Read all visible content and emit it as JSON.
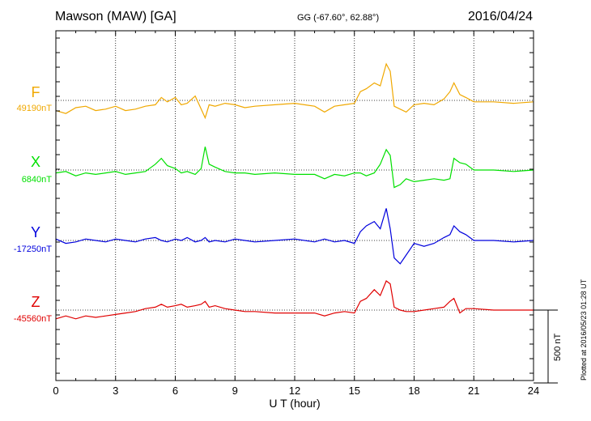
{
  "header": {
    "station": "Mawson (MAW)  [GA]",
    "coords": "GG (-67.60°,  62.88°)",
    "date": "2016/04/24"
  },
  "plotted_note": "Plotted at 2016/05/23 01:28 UT",
  "colors": {
    "F": "#f0a800",
    "X": "#00e000",
    "Y": "#0000dd",
    "Z": "#e00000"
  },
  "chart_data": {
    "type": "line",
    "title": "Mawson (MAW)  [GA]",
    "xlabel": "U T (hour)",
    "x_ticks": [
      "0",
      "3",
      "6",
      "9",
      "12",
      "15",
      "18",
      "21",
      "24"
    ],
    "xlim": [
      0,
      24
    ],
    "grid": true,
    "scale_bar": {
      "label": "500 nT",
      "value_nT": 500
    },
    "series": [
      {
        "name": "F",
        "baseline_label": "49190nT",
        "baseline_nT": 49190,
        "x": [
          0,
          0.5,
          1,
          1.5,
          2,
          2.5,
          3,
          3.5,
          4,
          4.5,
          5,
          5.3,
          5.6,
          6,
          6.3,
          6.6,
          7,
          7.3,
          7.5,
          7.7,
          8,
          8.5,
          9,
          9.5,
          10,
          11,
          12,
          13,
          13.5,
          14,
          14.5,
          15,
          15.3,
          15.6,
          16,
          16.3,
          16.6,
          16.8,
          17,
          17.3,
          17.6,
          18,
          18.5,
          19,
          19.5,
          19.8,
          20,
          20.3,
          20.6,
          21,
          22,
          23,
          24
        ],
        "values": [
          -70,
          -90,
          -50,
          -40,
          -70,
          -60,
          -40,
          -70,
          -60,
          -40,
          -30,
          20,
          -10,
          20,
          -30,
          -20,
          30,
          -60,
          -120,
          -30,
          -40,
          -20,
          -30,
          -50,
          -40,
          -30,
          -20,
          -40,
          -80,
          -40,
          -30,
          -20,
          60,
          80,
          120,
          100,
          250,
          200,
          -40,
          -60,
          -80,
          -30,
          -20,
          -30,
          10,
          60,
          120,
          40,
          20,
          -10,
          -10,
          -20,
          -10
        ]
      },
      {
        "name": "X",
        "baseline_label": "6840nT",
        "baseline_nT": 6840,
        "x": [
          0,
          0.5,
          1,
          1.5,
          2,
          2.5,
          3,
          3.5,
          4,
          4.5,
          5,
          5.3,
          5.6,
          6,
          6.3,
          6.6,
          7,
          7.3,
          7.5,
          7.7,
          8,
          8.5,
          9,
          9.5,
          10,
          11,
          12,
          13,
          13.5,
          14,
          14.5,
          15,
          15.3,
          15.6,
          16,
          16.3,
          16.6,
          16.8,
          17,
          17.3,
          17.6,
          18,
          18.5,
          19,
          19.5,
          19.8,
          20,
          20.3,
          20.6,
          21,
          22,
          23,
          24
        ],
        "values": [
          -20,
          -10,
          -40,
          -20,
          -30,
          -20,
          -10,
          -30,
          -20,
          -10,
          40,
          80,
          30,
          10,
          -20,
          -10,
          -30,
          10,
          160,
          40,
          20,
          -10,
          -20,
          -20,
          -30,
          -20,
          -30,
          -30,
          -60,
          -30,
          -40,
          -20,
          -20,
          -40,
          -20,
          40,
          140,
          100,
          -120,
          -100,
          -60,
          -80,
          -70,
          -60,
          -70,
          -60,
          80,
          50,
          40,
          0,
          0,
          -10,
          0
        ]
      },
      {
        "name": "Y",
        "baseline_label": "-17250nT",
        "baseline_nT": -17250,
        "x": [
          0,
          0.5,
          1,
          1.5,
          2,
          2.5,
          3,
          3.5,
          4,
          4.5,
          5,
          5.3,
          5.6,
          6,
          6.3,
          6.6,
          7,
          7.3,
          7.5,
          7.7,
          8,
          8.5,
          9,
          9.5,
          10,
          11,
          12,
          13,
          13.5,
          14,
          14.5,
          15,
          15.3,
          15.6,
          16,
          16.3,
          16.6,
          16.8,
          17,
          17.3,
          17.6,
          18,
          18.5,
          19,
          19.5,
          19.8,
          20,
          20.3,
          20.6,
          21,
          22,
          23,
          24
        ],
        "values": [
          10,
          -20,
          -10,
          10,
          0,
          -10,
          10,
          0,
          -10,
          10,
          20,
          0,
          -10,
          10,
          0,
          20,
          -10,
          0,
          20,
          -10,
          0,
          -10,
          10,
          0,
          -10,
          0,
          10,
          -10,
          10,
          -10,
          0,
          -20,
          60,
          100,
          130,
          80,
          220,
          80,
          -120,
          -160,
          -100,
          -20,
          -40,
          -20,
          20,
          40,
          100,
          60,
          40,
          0,
          0,
          -10,
          0
        ]
      },
      {
        "name": "Z",
        "baseline_label": "-45560nT",
        "baseline_nT": -45560,
        "x": [
          0,
          0.5,
          1,
          1.5,
          2,
          2.5,
          3,
          3.5,
          4,
          4.5,
          5,
          5.3,
          5.6,
          6,
          6.3,
          6.6,
          7,
          7.3,
          7.5,
          7.7,
          8,
          8.5,
          9,
          9.5,
          10,
          11,
          12,
          13,
          13.5,
          14,
          14.5,
          15,
          15.3,
          15.6,
          16,
          16.3,
          16.6,
          16.8,
          17,
          17.3,
          17.6,
          18,
          18.5,
          19,
          19.5,
          19.8,
          20,
          20.3,
          20.6,
          21,
          22,
          23,
          24
        ],
        "values": [
          -60,
          -40,
          -60,
          -40,
          -50,
          -40,
          -30,
          -20,
          -10,
          10,
          20,
          40,
          20,
          30,
          40,
          20,
          30,
          40,
          60,
          20,
          30,
          10,
          0,
          -10,
          -10,
          -20,
          -20,
          -20,
          -40,
          -20,
          -10,
          -20,
          60,
          80,
          140,
          100,
          200,
          180,
          20,
          0,
          -10,
          -10,
          0,
          10,
          20,
          60,
          80,
          -20,
          10,
          10,
          0,
          0,
          0
        ]
      }
    ]
  }
}
